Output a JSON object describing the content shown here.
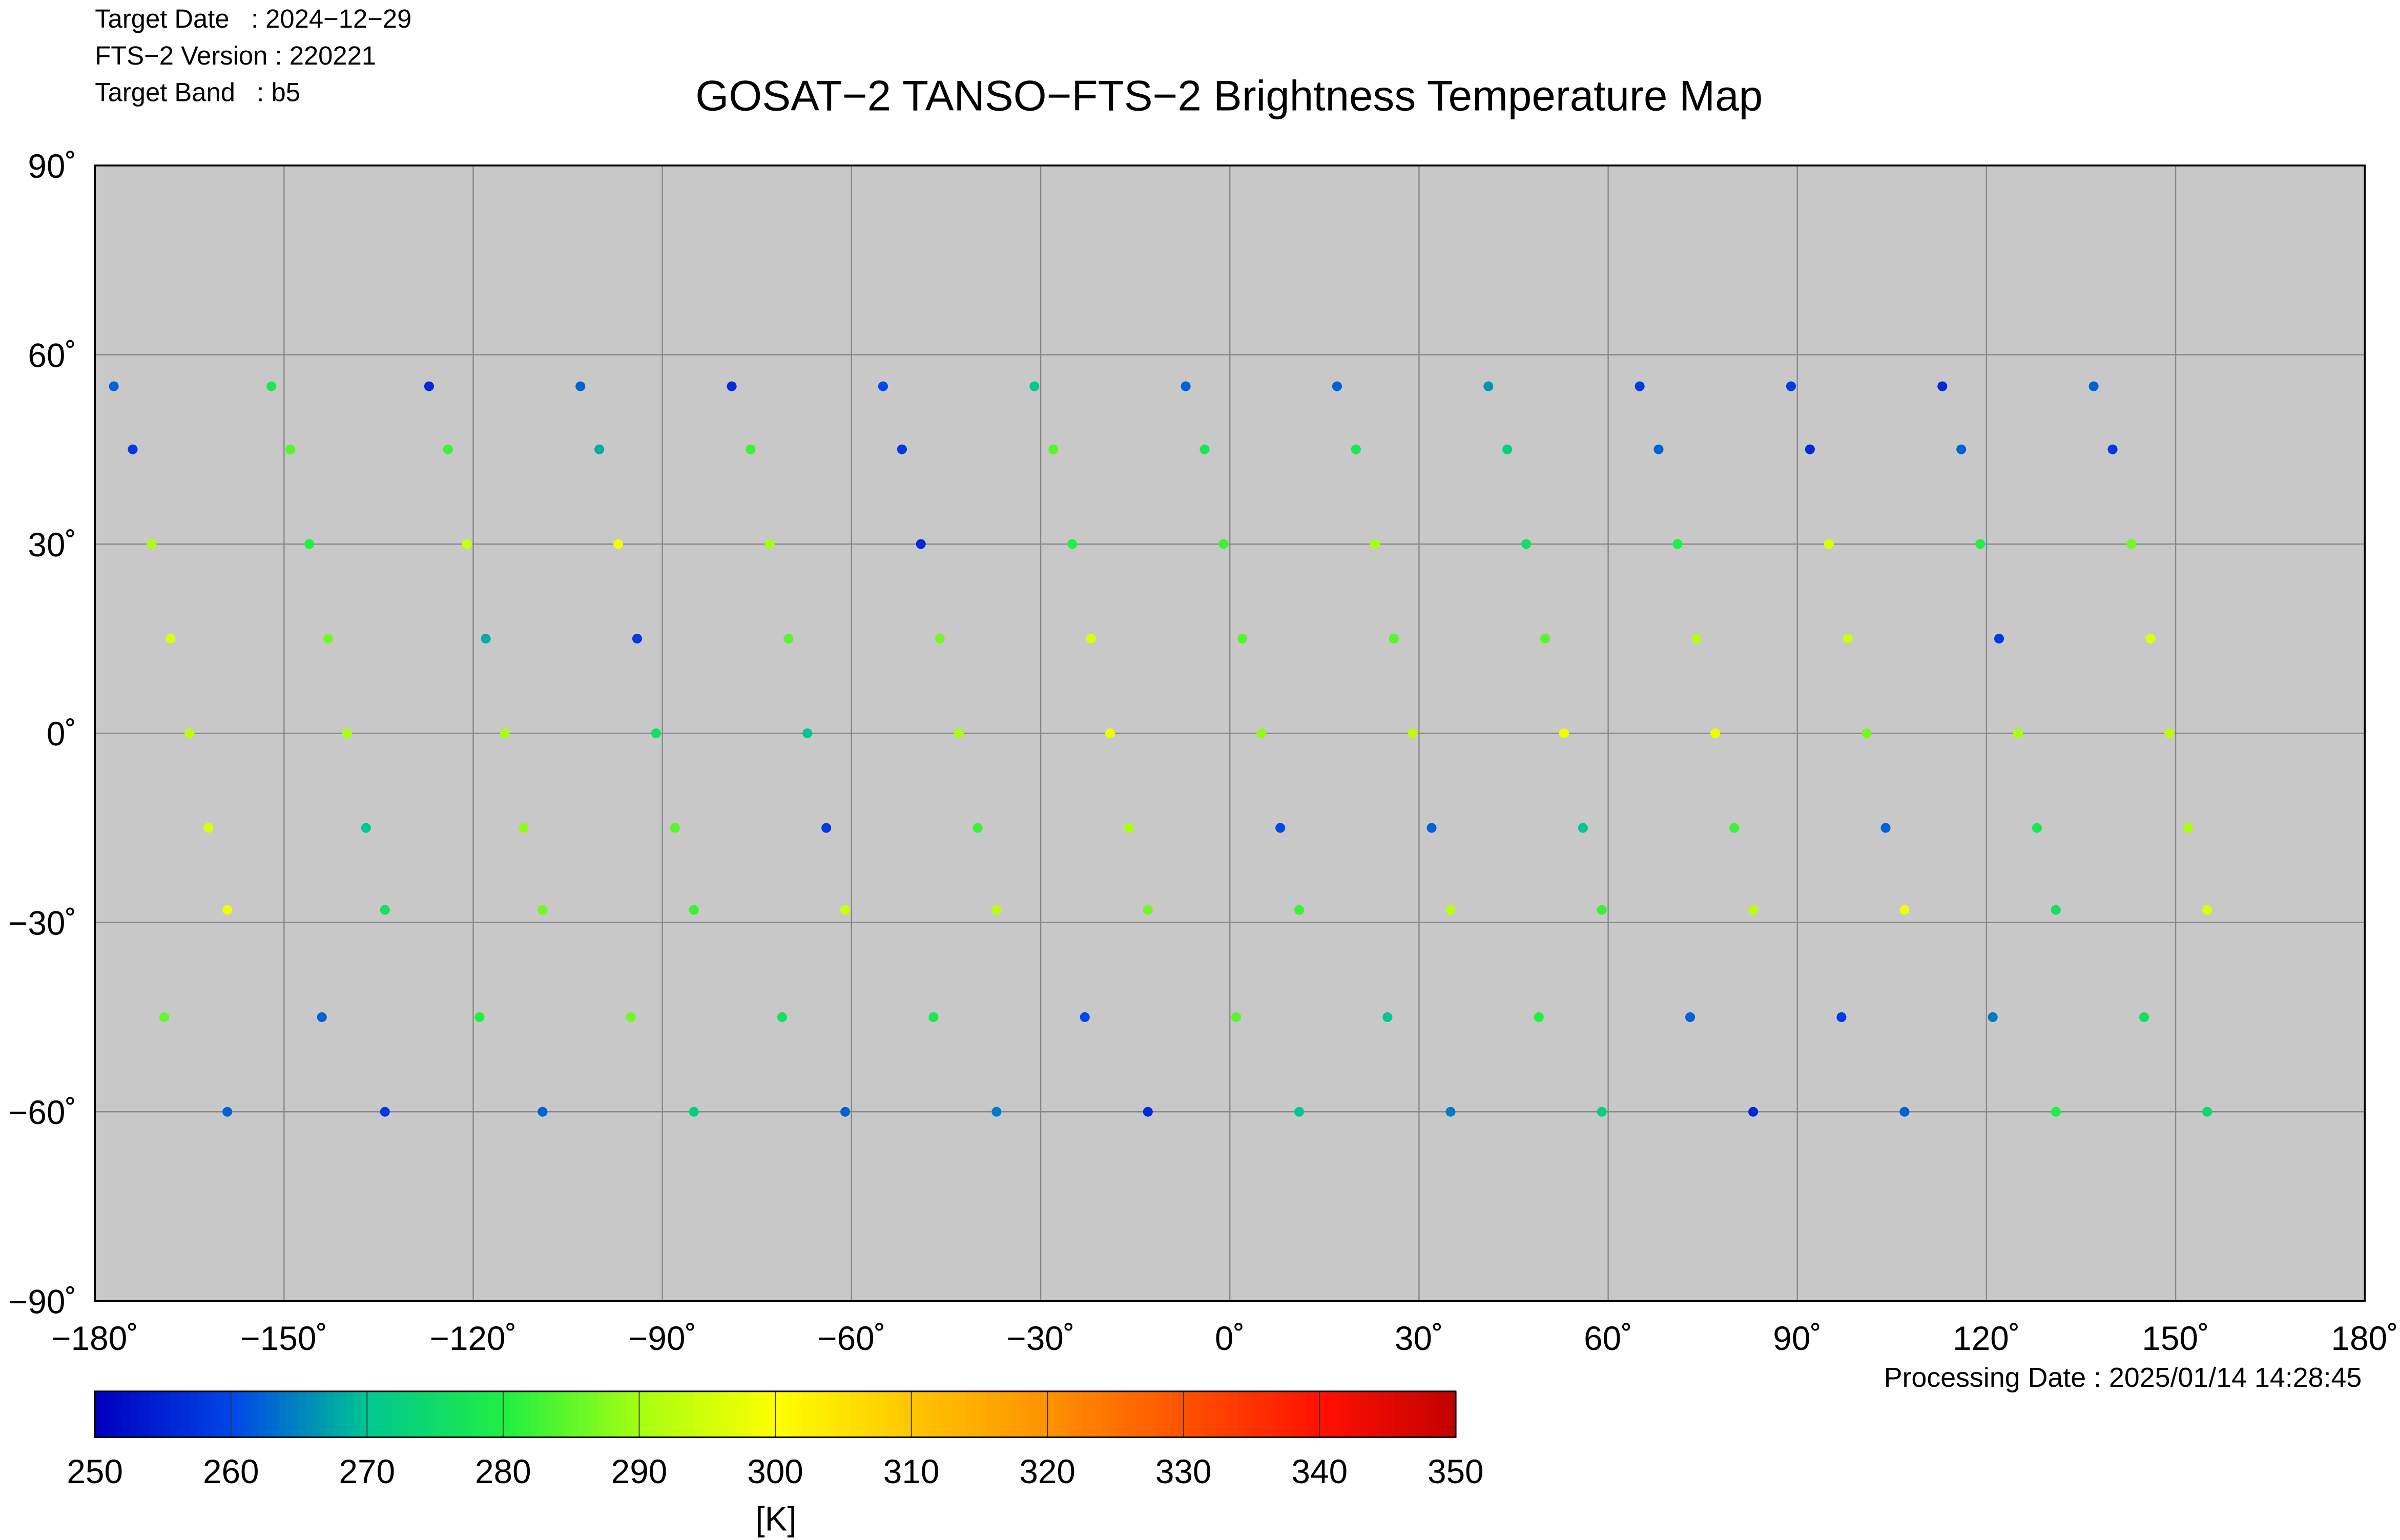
{
  "chart_data": {
    "type": "scatter",
    "title": "GOSAT−2 TANSO−FTS−2 Brightness Temperature Map",
    "header": [
      "Target Date   : 2024−12−29",
      "FTS−2 Version : 220221",
      "Target Band   : b5"
    ],
    "footer": "Processing Date : 2025/01/14 14:28:45",
    "colorbar_label": "[K]",
    "xlim": [
      -180,
      180
    ],
    "ylim": [
      -90,
      90
    ],
    "xticks": [
      {
        "value": -180,
        "label": "−180˚"
      },
      {
        "value": -150,
        "label": "−150˚"
      },
      {
        "value": -120,
        "label": "−120˚"
      },
      {
        "value": -90,
        "label": "−90˚"
      },
      {
        "value": -60,
        "label": "−60˚"
      },
      {
        "value": -30,
        "label": "−30˚"
      },
      {
        "value": 0,
        "label": "0˚"
      },
      {
        "value": 30,
        "label": "30˚"
      },
      {
        "value": 60,
        "label": "60˚"
      },
      {
        "value": 90,
        "label": "90˚"
      },
      {
        "value": 120,
        "label": "120˚"
      },
      {
        "value": 150,
        "label": "150˚"
      },
      {
        "value": 180,
        "label": "180˚"
      }
    ],
    "yticks": [
      {
        "value": 90,
        "label": "90˚"
      },
      {
        "value": 60,
        "label": "60˚"
      },
      {
        "value": 30,
        "label": "30˚"
      },
      {
        "value": 0,
        "label": "0˚"
      },
      {
        "value": -30,
        "label": "−30˚"
      },
      {
        "value": -60,
        "label": "−60˚"
      },
      {
        "value": -90,
        "label": "−90˚"
      }
    ],
    "grid": true,
    "background": "#c8c8c8",
    "clim": [
      250,
      350
    ],
    "cticks": [
      250,
      260,
      270,
      280,
      290,
      300,
      310,
      320,
      330,
      340,
      350
    ],
    "colormap": [
      "#0000c0",
      "#0048e8",
      "#00c890",
      "#20f040",
      "#a8ff10",
      "#ffff00",
      "#ffc400",
      "#ff9000",
      "#ff5000",
      "#ff1000",
      "#c00000"
    ],
    "x": [
      -177,
      -174,
      -171,
      -168,
      -165,
      -162,
      -159,
      -169,
      -159,
      -152,
      -149,
      -146,
      -143,
      -140,
      -137,
      -134,
      -144,
      -134,
      -127,
      -124,
      -121,
      -118,
      -115,
      -112,
      -109,
      -119,
      -109,
      -103,
      -100,
      -97,
      -94,
      -91,
      -88,
      -85,
      -95,
      -85,
      -79,
      -76,
      -73,
      -70,
      -67,
      -64,
      -61,
      -71,
      -61,
      -55,
      -52,
      -49,
      -46,
      -43,
      -40,
      -37,
      -47,
      -37,
      -31,
      -28,
      -25,
      -22,
      -19,
      -16,
      -13,
      -23,
      -13,
      -7,
      -4,
      -1,
      2,
      5,
      8,
      11,
      1,
      11,
      17,
      20,
      23,
      26,
      29,
      32,
      35,
      25,
      35,
      41,
      44,
      47,
      50,
      53,
      56,
      59,
      49,
      59,
      65,
      68,
      71,
      74,
      77,
      80,
      83,
      73,
      83,
      89,
      92,
      95,
      98,
      101,
      104,
      107,
      97,
      107,
      113,
      116,
      119,
      122,
      125,
      128,
      131,
      121,
      131,
      137,
      140,
      143,
      146,
      149,
      152,
      155,
      145,
      155
    ],
    "y": [
      55,
      45,
      30,
      15,
      0,
      -15,
      -28,
      -45,
      -60,
      55,
      45,
      30,
      15,
      0,
      -15,
      -28,
      -45,
      -60,
      55,
      45,
      30,
      15,
      0,
      -15,
      -28,
      -45,
      -60,
      55,
      45,
      30,
      15,
      0,
      -15,
      -28,
      -45,
      -60,
      55,
      45,
      30,
      15,
      0,
      -15,
      -28,
      -45,
      -60,
      55,
      45,
      30,
      15,
      0,
      -15,
      -28,
      -45,
      -60,
      55,
      45,
      30,
      15,
      0,
      -15,
      -28,
      -45,
      -60,
      55,
      45,
      30,
      15,
      0,
      -15,
      -28,
      -45,
      -60,
      55,
      45,
      30,
      15,
      0,
      -15,
      -28,
      -45,
      -60,
      55,
      45,
      30,
      15,
      0,
      -15,
      -28,
      -45,
      -60,
      55,
      45,
      30,
      15,
      0,
      -15,
      -28,
      -45,
      -60,
      55,
      45,
      30,
      15,
      0,
      -15,
      -28,
      -45,
      -60,
      55,
      45,
      30,
      15,
      0,
      -15,
      -28,
      -45,
      -60,
      55,
      45,
      30,
      15,
      0,
      -15,
      -28,
      -45,
      -60
    ],
    "values": [
      262,
      258,
      290,
      296,
      292,
      296,
      298,
      285,
      262,
      278,
      284,
      280,
      286,
      290,
      270,
      276,
      262,
      258,
      256,
      282,
      294,
      268,
      290,
      288,
      286,
      280,
      262,
      262,
      268,
      298,
      258,
      276,
      284,
      282,
      286,
      272,
      256,
      282,
      290,
      284,
      270,
      258,
      294,
      276,
      262,
      260,
      258,
      256,
      286,
      290,
      282,
      292,
      278,
      264,
      270,
      284,
      280,
      296,
      298,
      290,
      286,
      260,
      256,
      262,
      278,
      282,
      284,
      288,
      260,
      282,
      284,
      270,
      262,
      278,
      290,
      284,
      292,
      262,
      292,
      270,
      264,
      266,
      272,
      276,
      284,
      298,
      270,
      282,
      280,
      272,
      258,
      262,
      280,
      292,
      298,
      282,
      292,
      262,
      256,
      258,
      256,
      296,
      294,
      286,
      262,
      298,
      258,
      262,
      256,
      262,
      280,
      258,
      290,
      278,
      276,
      264,
      280,
      262,
      258,
      286,
      296,
      292,
      290,
      296,
      276,
      274
    ]
  }
}
